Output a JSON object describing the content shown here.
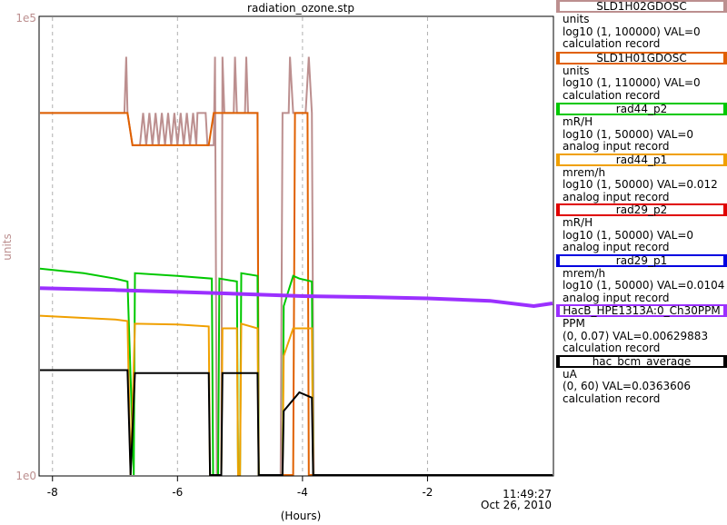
{
  "chart_data": {
    "type": "line",
    "title": "radiation_ozone.stp",
    "ylabel": "units",
    "xlabel": "(Hours)",
    "y_top_label": "1e5",
    "y_bottom_label": "1e0",
    "x_ticks": [
      "-8",
      "-6",
      "-4",
      "-2"
    ],
    "x_end_label_time": "11:49:27",
    "x_end_label_date": "Oct 26, 2010",
    "y_scale": "log",
    "ylim": [
      1,
      100000
    ],
    "xlim": [
      -8.2,
      0
    ],
    "grid": true,
    "series": [
      {
        "name": "SLD1H02GDOSC",
        "color": "#bc8f8f",
        "points": [
          [
            -8.2,
            9000
          ],
          [
            -6.85,
            9000
          ],
          [
            -6.82,
            37000
          ],
          [
            -6.8,
            9000
          ],
          [
            -6.72,
            4000
          ],
          [
            -6.6,
            4000
          ],
          [
            -6.55,
            9000
          ],
          [
            -6.5,
            4000
          ],
          [
            -6.45,
            9000
          ],
          [
            -6.4,
            4000
          ],
          [
            -6.35,
            9000
          ],
          [
            -6.3,
            4000
          ],
          [
            -6.25,
            9000
          ],
          [
            -6.2,
            4000
          ],
          [
            -6.15,
            9000
          ],
          [
            -6.1,
            4000
          ],
          [
            -6.05,
            9000
          ],
          [
            -6.0,
            4000
          ],
          [
            -5.95,
            9000
          ],
          [
            -5.9,
            4000
          ],
          [
            -5.85,
            9000
          ],
          [
            -5.8,
            4000
          ],
          [
            -5.75,
            9000
          ],
          [
            -5.7,
            4000
          ],
          [
            -5.68,
            9000
          ],
          [
            -5.55,
            9000
          ],
          [
            -5.52,
            4000
          ],
          [
            -5.42,
            4000
          ],
          [
            -5.4,
            37000
          ],
          [
            -5.37,
            1
          ],
          [
            -5.3,
            1
          ],
          [
            -5.28,
            37000
          ],
          [
            -5.25,
            9000
          ],
          [
            -5.1,
            9000
          ],
          [
            -5.08,
            37000
          ],
          [
            -5.05,
            9000
          ],
          [
            -4.92,
            9000
          ],
          [
            -4.9,
            37000
          ],
          [
            -4.87,
            9000
          ],
          [
            -4.72,
            9000
          ],
          [
            -4.7,
            1
          ],
          [
            -4.35,
            1
          ],
          [
            -4.32,
            9000
          ],
          [
            -4.22,
            9000
          ],
          [
            -4.2,
            37000
          ],
          [
            -4.15,
            9000
          ],
          [
            -3.95,
            9000
          ],
          [
            -3.9,
            37000
          ],
          [
            -3.85,
            9000
          ],
          [
            -3.82,
            1
          ],
          [
            0,
            1
          ]
        ]
      },
      {
        "name": "SLD1H01GDOSC",
        "color": "#e06000",
        "points": [
          [
            -8.2,
            9000
          ],
          [
            -6.8,
            9000
          ],
          [
            -6.72,
            4000
          ],
          [
            -5.5,
            4000
          ],
          [
            -5.42,
            9000
          ],
          [
            -4.72,
            9000
          ],
          [
            -4.7,
            1
          ],
          [
            -4.15,
            1
          ],
          [
            -4.12,
            9000
          ],
          [
            -3.92,
            9000
          ],
          [
            -3.9,
            1
          ],
          [
            0,
            1
          ]
        ]
      },
      {
        "name": "rad44_p2",
        "color": "#00c800",
        "points": [
          [
            -8.2,
            180
          ],
          [
            -7.5,
            160
          ],
          [
            -7,
            140
          ],
          [
            -6.8,
            130
          ],
          [
            -6.7,
            1
          ],
          [
            -6.68,
            160
          ],
          [
            -6,
            150
          ],
          [
            -5.45,
            140
          ],
          [
            -5.43,
            1
          ],
          [
            -5.35,
            1
          ],
          [
            -5.33,
            140
          ],
          [
            -5.05,
            130
          ],
          [
            -5.03,
            1
          ],
          [
            -5.0,
            1
          ],
          [
            -4.98,
            160
          ],
          [
            -4.72,
            150
          ],
          [
            -4.7,
            1
          ],
          [
            -4.32,
            1
          ],
          [
            -4.3,
            70
          ],
          [
            -4.15,
            150
          ],
          [
            -4.05,
            140
          ],
          [
            -3.85,
            130
          ],
          [
            -3.83,
            1
          ],
          [
            0,
            1
          ]
        ]
      },
      {
        "name": "rad44_p1",
        "color": "#f0a000",
        "points": [
          [
            -8.2,
            55
          ],
          [
            -7,
            50
          ],
          [
            -6.8,
            48
          ],
          [
            -6.75,
            1
          ],
          [
            -6.68,
            45
          ],
          [
            -6,
            44
          ],
          [
            -5.5,
            42
          ],
          [
            -5.48,
            1
          ],
          [
            -5.3,
            1
          ],
          [
            -5.28,
            40
          ],
          [
            -5.05,
            40
          ],
          [
            -5.03,
            1
          ],
          [
            -5.0,
            1
          ],
          [
            -4.98,
            45
          ],
          [
            -4.72,
            40
          ],
          [
            -4.7,
            1
          ],
          [
            -4.32,
            1
          ],
          [
            -4.3,
            20
          ],
          [
            -4.15,
            40
          ],
          [
            -3.85,
            40
          ],
          [
            -3.83,
            1
          ],
          [
            0,
            1
          ]
        ]
      },
      {
        "name": "rad29_p2",
        "color": "#e00000",
        "points": []
      },
      {
        "name": "rad29_p1",
        "color": "#0000e0",
        "points": []
      },
      {
        "name": "HacB_HPE1313A:0_Ch30PPM",
        "color": "#9b30ff",
        "points": [
          [
            -8.2,
            110
          ],
          [
            -7,
            105
          ],
          [
            -6,
            100
          ],
          [
            -5,
            95
          ],
          [
            -4,
            90
          ],
          [
            -3,
            88
          ],
          [
            -2,
            85
          ],
          [
            -1,
            80
          ],
          [
            -0.3,
            70
          ],
          [
            0,
            75
          ]
        ]
      },
      {
        "name": "hac_bcm_average",
        "color": "#000000",
        "points": [
          [
            -8.2,
            14
          ],
          [
            -6.8,
            14
          ],
          [
            -6.75,
            1
          ],
          [
            -6.68,
            13
          ],
          [
            -5.5,
            13
          ],
          [
            -5.48,
            1
          ],
          [
            -5.3,
            1
          ],
          [
            -5.28,
            13
          ],
          [
            -4.72,
            13
          ],
          [
            -4.7,
            1
          ],
          [
            -4.32,
            1
          ],
          [
            -4.3,
            5
          ],
          [
            -4.05,
            8
          ],
          [
            -3.85,
            7
          ],
          [
            -3.83,
            1
          ],
          [
            0,
            1
          ]
        ]
      }
    ]
  },
  "legend": [
    {
      "name": "SLD1H02GDOSC",
      "color": "#bc8f8f",
      "unit": "units",
      "range": "log10 (1, 100000) VAL=0",
      "kind": "calculation record"
    },
    {
      "name": "SLD1H01GDOSC",
      "color": "#e06000",
      "unit": "units",
      "range": "log10 (1, 110000) VAL=0",
      "kind": "calculation record"
    },
    {
      "name": "rad44_p2",
      "color": "#00c800",
      "unit": "mR/H",
      "range": "log10 (1, 50000) VAL=0",
      "kind": "analog input record"
    },
    {
      "name": "rad44_p1",
      "color": "#f0a000",
      "unit": "mrem/h",
      "range": "log10 (1, 50000) VAL=0.012",
      "kind": "analog input record"
    },
    {
      "name": "rad29_p2",
      "color": "#e00000",
      "unit": "mR/H",
      "range": "log10 (1, 50000) VAL=0",
      "kind": "analog input record"
    },
    {
      "name": "rad29_p1",
      "color": "#0000e0",
      "unit": "mrem/h",
      "range": "log10 (1, 50000) VAL=0.0104",
      "kind": "analog input record"
    },
    {
      "name": "HacB_HPE1313A:0_Ch30PPM",
      "color": "#9b30ff",
      "unit": "PPM",
      "range": "(0, 0.07) VAL=0.00629883",
      "kind": "calculation record"
    },
    {
      "name": "hac_bcm_average",
      "color": "#000000",
      "unit": "uA",
      "range": "(0, 60) VAL=0.0363606",
      "kind": "calculation record"
    }
  ]
}
